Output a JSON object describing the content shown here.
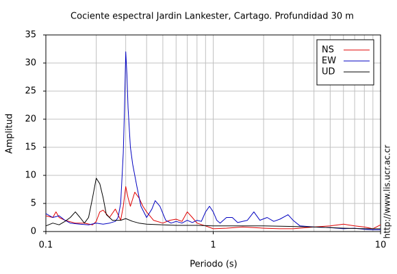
{
  "chart_data": {
    "type": "line",
    "title": "Cociente espectral Jardin Lankester, Cartago. Profundidad 30 m",
    "x_label": "Periodo (s)",
    "y_label": "Amplitud",
    "side_note": "http://www.lis.ucr.ac.cr",
    "xscale": "log",
    "xlim": [
      0.1,
      10
    ],
    "xticks": [
      0.1,
      1,
      10
    ],
    "ylim": [
      0,
      35
    ],
    "yticks": [
      0,
      5,
      10,
      15,
      20,
      25,
      30,
      35
    ],
    "grid": true,
    "legend": "upper-right",
    "series": [
      {
        "name": "NS",
        "color": "#e00000",
        "x": [
          0.1,
          0.11,
          0.115,
          0.12,
          0.13,
          0.15,
          0.17,
          0.19,
          0.2,
          0.21,
          0.22,
          0.24,
          0.26,
          0.27,
          0.28,
          0.29,
          0.3,
          0.31,
          0.32,
          0.34,
          0.36,
          0.38,
          0.4,
          0.44,
          0.5,
          0.55,
          0.6,
          0.65,
          0.7,
          0.75,
          0.8,
          0.9,
          1,
          1.2,
          1.5,
          2,
          2.5,
          3,
          4,
          5,
          6,
          7,
          8,
          9,
          10
        ],
        "values": [
          2.8,
          2.5,
          3.5,
          2.5,
          2.0,
          1.5,
          1.5,
          1.2,
          1.8,
          3.5,
          3.8,
          2.5,
          4.0,
          3.0,
          2.0,
          4.5,
          8,
          6,
          4.5,
          7,
          6,
          4.5,
          3.5,
          2,
          1.5,
          2,
          2.2,
          1.8,
          3.5,
          2.5,
          1.5,
          1.0,
          0.5,
          0.6,
          0.8,
          0.6,
          0.5,
          0.5,
          0.8,
          1.0,
          1.3,
          1.0,
          0.8,
          0.5,
          1.2
        ]
      },
      {
        "name": "EW",
        "color": "#0000c0",
        "x": [
          0.1,
          0.11,
          0.12,
          0.13,
          0.14,
          0.16,
          0.18,
          0.2,
          0.22,
          0.24,
          0.26,
          0.27,
          0.28,
          0.29,
          0.295,
          0.3,
          0.305,
          0.31,
          0.32,
          0.33,
          0.35,
          0.37,
          0.4,
          0.43,
          0.45,
          0.48,
          0.52,
          0.56,
          0.6,
          0.65,
          0.7,
          0.75,
          0.8,
          0.85,
          0.9,
          0.95,
          1.0,
          1.05,
          1.1,
          1.2,
          1.3,
          1.4,
          1.6,
          1.75,
          1.9,
          2.1,
          2.3,
          2.5,
          2.8,
          3.0,
          3.3,
          4,
          5,
          6,
          7,
          8,
          9,
          10
        ],
        "values": [
          3.2,
          2.5,
          2.8,
          2.0,
          1.5,
          1.3,
          1.2,
          1.5,
          1.3,
          1.5,
          1.8,
          2.5,
          5,
          14,
          22,
          32,
          28,
          22,
          15,
          12,
          8,
          4.5,
          2.5,
          4,
          5.5,
          4.5,
          2,
          1.5,
          1.8,
          1.5,
          2,
          1.6,
          2.0,
          1.8,
          3.5,
          4.5,
          3.5,
          2,
          1.5,
          2.5,
          2.5,
          1.6,
          2.0,
          3.5,
          2.0,
          2.5,
          1.8,
          2.2,
          3.0,
          2.0,
          1.0,
          0.8,
          0.7,
          0.5,
          0.6,
          0.4,
          0.3,
          0.3
        ]
      },
      {
        "name": "UD",
        "color": "#000000",
        "x": [
          0.1,
          0.11,
          0.12,
          0.13,
          0.14,
          0.15,
          0.16,
          0.17,
          0.18,
          0.19,
          0.2,
          0.21,
          0.22,
          0.23,
          0.25,
          0.28,
          0.3,
          0.33,
          0.36,
          0.4,
          0.5,
          0.6,
          0.8,
          1,
          1.5,
          2,
          3,
          4,
          5,
          6,
          8,
          10
        ],
        "values": [
          1.0,
          1.5,
          1.2,
          1.8,
          2.5,
          3.5,
          2.5,
          1.5,
          2.5,
          6,
          9.5,
          8.5,
          6,
          3,
          2,
          2,
          2.3,
          1.8,
          1.5,
          1.3,
          1.2,
          1.1,
          1.1,
          1.0,
          1.0,
          1.0,
          0.9,
          0.8,
          0.7,
          0.6,
          0.5,
          0.5
        ]
      }
    ]
  }
}
